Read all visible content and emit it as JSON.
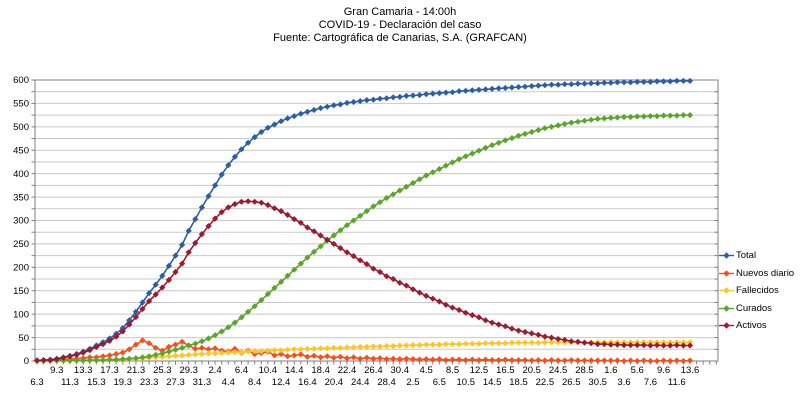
{
  "title": {
    "line1": "Gran Camaria - 14:00h",
    "line2": "COVID-19 - Declaración del caso",
    "line3": "Fuente: Cartográfica de Canarias, S.A. (GRAFCAN)"
  },
  "chart_data": {
    "type": "line",
    "title": "Gran Camaria - 14:00h",
    "subtitle": "COVID-19 - Declaración del caso",
    "source": "Fuente: Cartográfica de Canarias, S.A. (GRAFCAN)",
    "grid": true,
    "legend_position": "right",
    "ylim": [
      0,
      600
    ],
    "y_tick_step": 50,
    "y_gridline_step": 25,
    "x_labels_top": [
      "9.3",
      "13.3",
      "17.3",
      "21.3",
      "25.3",
      "29.3",
      "2.4",
      "6.4",
      "10.4",
      "14.4",
      "18.4",
      "22.4",
      "26.4",
      "30.4",
      "4.5",
      "8.5",
      "12.5",
      "16.5",
      "20.5",
      "24.5",
      "28.5",
      "1.6",
      "5.6",
      "9.6",
      "13.6"
    ],
    "x_labels_bottom": [
      "6.3",
      "11.3",
      "15.3",
      "19.3",
      "23.3",
      "27.3",
      "31.3",
      "4.4",
      "8.4",
      "12.4",
      "16.4",
      "20.4",
      "24.4",
      "28.4",
      "2.5",
      "6.5",
      "10.5",
      "14.5",
      "18.5",
      "22.5",
      "26.5",
      "30.5",
      "3.6",
      "7.6",
      "11.6"
    ],
    "n_points": 100,
    "series": [
      {
        "name": "Total",
        "color": "#2D5DA8",
        "values": [
          1,
          2,
          3,
          5,
          8,
          11,
          15,
          20,
          26,
          33,
          40,
          48,
          58,
          70,
          87,
          105,
          125,
          145,
          163,
          182,
          203,
          225,
          248,
          278,
          303,
          328,
          352,
          375,
          398,
          418,
          436,
          452,
          466,
          478,
          489,
          498,
          505,
          512,
          518,
          523,
          528,
          532,
          536,
          540,
          543,
          546,
          548,
          551,
          553,
          555,
          557,
          558,
          560,
          561,
          563,
          564,
          566,
          567,
          568,
          570,
          571,
          572,
          573,
          574,
          576,
          577,
          578,
          579,
          580,
          581,
          582,
          583,
          584,
          585,
          586,
          587,
          588,
          589,
          590,
          590,
          591,
          591,
          592,
          592,
          593,
          593,
          594,
          594,
          595,
          595,
          595,
          596,
          596,
          596,
          597,
          597,
          597,
          598,
          598,
          598
        ]
      },
      {
        "name": "Nuevos diario",
        "color": "#F4501E",
        "values": [
          1,
          1,
          2,
          2,
          3,
          4,
          5,
          6,
          8,
          8,
          10,
          12,
          15,
          18,
          25,
          35,
          44,
          38,
          28,
          22,
          30,
          35,
          41,
          33,
          26,
          28,
          25,
          27,
          22,
          20,
          26,
          18,
          22,
          15,
          17,
          20,
          12,
          15,
          10,
          12,
          14,
          9,
          11,
          8,
          10,
          7,
          9,
          6,
          8,
          5,
          7,
          5,
          6,
          4,
          5,
          4,
          5,
          4,
          3,
          4,
          3,
          4,
          2,
          3,
          3,
          2,
          3,
          2,
          3,
          2,
          2,
          3,
          2,
          2,
          2,
          1,
          2,
          1,
          2,
          1,
          1,
          2,
          1,
          1,
          1,
          1,
          1,
          1,
          1,
          0,
          1,
          0,
          1,
          0,
          0,
          1,
          0,
          1,
          0,
          1
        ]
      },
      {
        "name": "Fallecidos",
        "color": "#FFC524",
        "values": [
          0,
          0,
          0,
          0,
          0,
          0,
          1,
          1,
          1,
          1,
          2,
          2,
          3,
          3,
          4,
          5,
          6,
          7,
          8,
          9,
          10,
          11,
          12,
          13,
          14,
          15,
          16,
          16,
          17,
          18,
          19,
          19,
          20,
          21,
          21,
          22,
          23,
          23,
          24,
          25,
          25,
          26,
          26,
          27,
          27,
          28,
          28,
          29,
          29,
          30,
          30,
          31,
          31,
          32,
          32,
          33,
          33,
          34,
          34,
          35,
          35,
          35,
          36,
          36,
          36,
          37,
          37,
          37,
          38,
          38,
          38,
          38,
          39,
          39,
          39,
          39,
          39,
          40,
          40,
          40,
          40,
          40,
          40,
          40,
          40,
          40,
          40,
          40,
          40,
          40,
          40,
          40,
          40,
          40,
          40,
          40,
          40,
          40,
          40,
          40
        ]
      },
      {
        "name": "Curados",
        "color": "#5BA52C",
        "values": [
          0,
          0,
          1,
          1,
          1,
          1,
          1,
          1,
          2,
          2,
          2,
          3,
          3,
          4,
          5,
          6,
          8,
          10,
          13,
          16,
          20,
          24,
          28,
          33,
          37,
          42,
          48,
          55,
          63,
          72,
          82,
          93,
          105,
          117,
          130,
          143,
          156,
          169,
          182,
          195,
          208,
          221,
          233,
          245,
          257,
          268,
          279,
          290,
          300,
          310,
          320,
          330,
          339,
          348,
          356,
          364,
          372,
          380,
          388,
          396,
          403,
          410,
          417,
          424,
          431,
          437,
          443,
          449,
          455,
          461,
          466,
          471,
          476,
          481,
          485,
          489,
          493,
          497,
          500,
          503,
          506,
          509,
          511,
          513,
          515,
          517,
          518,
          519,
          520,
          521,
          521,
          522,
          522,
          523,
          523,
          524,
          524,
          524,
          525,
          525
        ]
      },
      {
        "name": "Activos",
        "color": "#9B1B30",
        "values": [
          1,
          2,
          2,
          4,
          7,
          10,
          13,
          18,
          23,
          30,
          36,
          43,
          52,
          63,
          78,
          94,
          111,
          128,
          142,
          157,
          173,
          190,
          208,
          232,
          252,
          271,
          288,
          304,
          318,
          328,
          335,
          340,
          341,
          340,
          338,
          333,
          326,
          320,
          312,
          303,
          295,
          285,
          277,
          268,
          259,
          250,
          241,
          232,
          224,
          215,
          207,
          197,
          190,
          181,
          175,
          167,
          161,
          153,
          146,
          139,
          133,
          127,
          120,
          114,
          109,
          103,
          98,
          93,
          87,
          82,
          78,
          74,
          69,
          65,
          62,
          59,
          56,
          52,
          50,
          47,
          45,
          42,
          41,
          39,
          38,
          36,
          36,
          35,
          35,
          34,
          34,
          34,
          34,
          33,
          34,
          33,
          33,
          34,
          33,
          33
        ]
      }
    ]
  }
}
